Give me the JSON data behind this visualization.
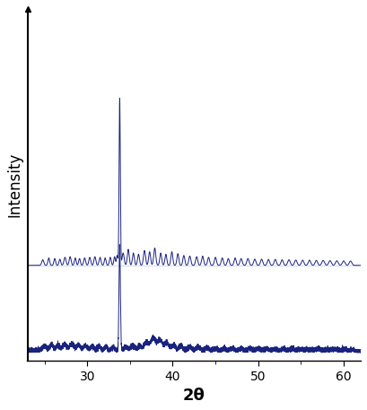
{
  "line_color": "#1a237e",
  "line_width": 0.7,
  "xlabel": "2θ",
  "ylabel": "Intensity",
  "xlabel_fontsize": 13,
  "ylabel_fontsize": 12,
  "xlabel_fontweight": "bold",
  "tick_fontsize": 10,
  "xlim": [
    23,
    62
  ],
  "x_ticks": [
    30,
    40,
    50,
    60
  ],
  "background_color": "#ffffff",
  "top_baseline": 0.52,
  "bottom_baseline": 0.0,
  "ylim": [
    -0.05,
    2.05
  ]
}
